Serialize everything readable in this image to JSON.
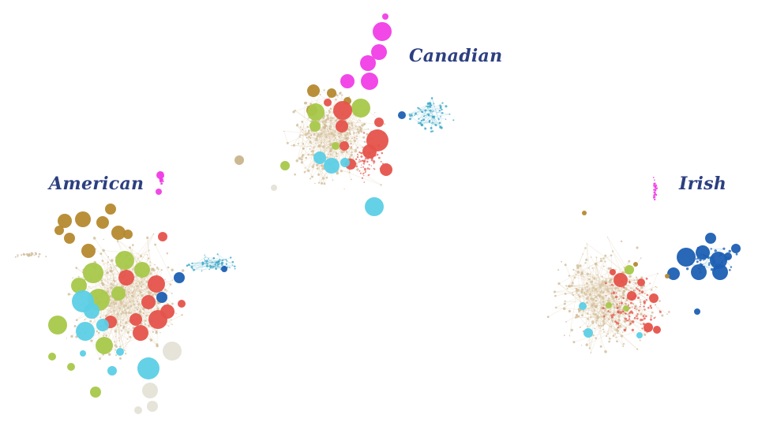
{
  "networks": {
    "american": {
      "label": "American"
    },
    "canadian": {
      "label": "Canadian"
    },
    "irish": {
      "label": "Irish"
    }
  },
  "colors": {
    "label": "#2c3f80",
    "edge": "#dcc9a6",
    "node_small": "#c9b48d",
    "magenta": "#f03ee6",
    "red": "#e5534b",
    "green": "#a8c84a",
    "cyan": "#5ccfe6",
    "blue": "#1e5fb3",
    "teal": "#3aa6c8",
    "olive": "#b5892f",
    "grey": "#e5e3d6"
  }
}
